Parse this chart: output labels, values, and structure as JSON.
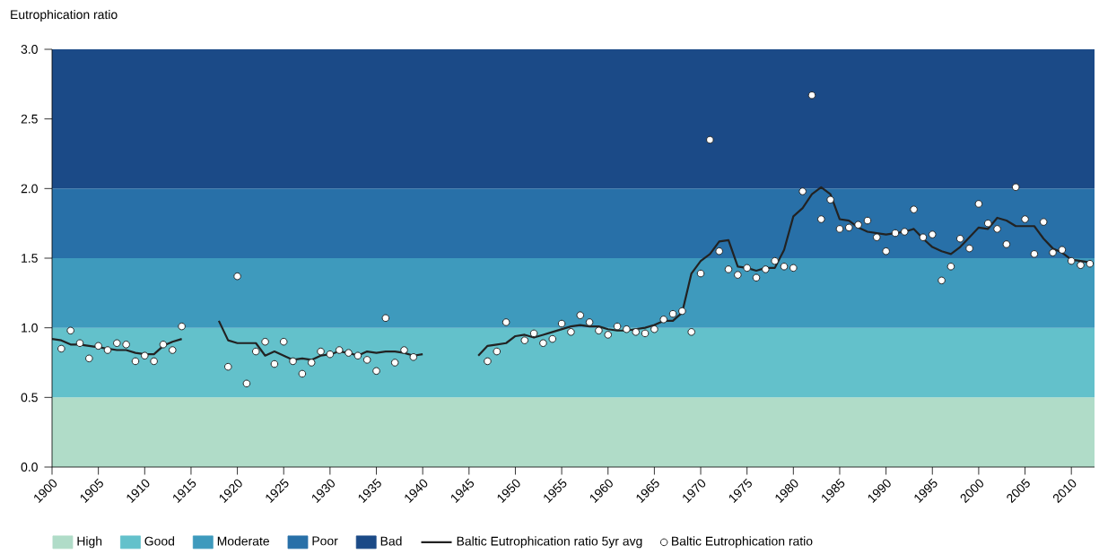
{
  "chart_data": {
    "type": "line",
    "ylabel": "Eutrophication ratio",
    "xlim": [
      1900,
      2012.5
    ],
    "ylim": [
      0,
      3
    ],
    "xticks": [
      1900,
      1905,
      1910,
      1915,
      1920,
      1925,
      1930,
      1935,
      1940,
      1945,
      1950,
      1955,
      1960,
      1965,
      1970,
      1975,
      1980,
      1985,
      1990,
      1995,
      2000,
      2005,
      2010
    ],
    "yticks": [
      {
        "value": 0,
        "label": "0.0"
      },
      {
        "value": 0.5,
        "label": "0.5"
      },
      {
        "value": 1,
        "label": "1.0"
      },
      {
        "value": 1.5,
        "label": "1.5"
      },
      {
        "value": 2,
        "label": "2.0"
      },
      {
        "value": 2.5,
        "label": "2.5"
      },
      {
        "value": 3,
        "label": "3.0"
      }
    ],
    "bands": [
      {
        "axis": "y",
        "from": 0,
        "to": 0.5,
        "label": "High",
        "color": "#b0dcc8"
      },
      {
        "axis": "y",
        "from": 0.5,
        "to": 1,
        "label": "Good",
        "color": "#63c1cb"
      },
      {
        "axis": "y",
        "from": 1,
        "to": 1.5,
        "label": "Moderate",
        "color": "#3e9abd"
      },
      {
        "axis": "y",
        "from": 1.5,
        "to": 2,
        "label": "Poor",
        "color": "#2870a8"
      },
      {
        "axis": "y",
        "from": 2,
        "to": 3,
        "label": "Bad",
        "color": "#1b4a87"
      }
    ],
    "legend": "bottom",
    "series": [
      {
        "name": "Baltic Eutrophication ratio 5yr avg",
        "color": "#222222",
        "marker": "none",
        "x": [
          1900,
          1901,
          1902,
          1903,
          1904,
          1905,
          1906,
          1907,
          1908,
          1909,
          1910,
          1911,
          1912,
          1913,
          1914,
          1915,
          1918,
          1919,
          1920,
          1921,
          1922,
          1923,
          1924,
          1925,
          1926,
          1927,
          1928,
          1929,
          1930,
          1931,
          1932,
          1933,
          1934,
          1935,
          1936,
          1937,
          1938,
          1939,
          1940,
          1941,
          1946,
          1947,
          1948,
          1949,
          1950,
          1951,
          1952,
          1953,
          1954,
          1955,
          1956,
          1957,
          1958,
          1959,
          1960,
          1961,
          1962,
          1963,
          1964,
          1965,
          1966,
          1967,
          1968,
          1969,
          1970,
          1971,
          1972,
          1973,
          1974,
          1975,
          1976,
          1977,
          1978,
          1979,
          1980,
          1981,
          1982,
          1983,
          1984,
          1985,
          1986,
          1987,
          1988,
          1989,
          1990,
          1991,
          1992,
          1993,
          1994,
          1995,
          1996,
          1997,
          1998,
          1999,
          2000,
          2001,
          2002,
          2003,
          2004,
          2005,
          2006,
          2007,
          2008,
          2009,
          2010,
          2011,
          2012
        ],
        "values": [
          0.92,
          0.91,
          0.88,
          0.88,
          0.87,
          0.86,
          0.85,
          0.84,
          0.84,
          0.82,
          0.81,
          0.81,
          0.87,
          0.9,
          0.92,
          null,
          1.05,
          0.91,
          0.89,
          0.89,
          0.89,
          0.8,
          0.83,
          0.8,
          0.77,
          0.78,
          0.77,
          0.8,
          0.81,
          0.83,
          0.82,
          0.8,
          0.83,
          0.82,
          0.83,
          0.83,
          0.82,
          0.8,
          0.81,
          null,
          0.8,
          0.87,
          0.88,
          0.89,
          0.94,
          0.95,
          0.93,
          0.95,
          0.97,
          0.99,
          1.01,
          1.02,
          1.01,
          1.01,
          0.99,
          0.98,
          0.98,
          0.99,
          1.0,
          1.02,
          1.05,
          1.05,
          1.11,
          1.39,
          1.48,
          1.53,
          1.62,
          1.63,
          1.44,
          1.43,
          1.41,
          1.43,
          1.43,
          1.56,
          1.8,
          1.86,
          1.96,
          2.01,
          1.96,
          1.78,
          1.77,
          1.72,
          1.69,
          1.68,
          1.67,
          1.68,
          1.69,
          1.71,
          1.64,
          1.58,
          1.55,
          1.53,
          1.58,
          1.65,
          1.72,
          1.71,
          1.79,
          1.77,
          1.73,
          1.73,
          1.73,
          1.64,
          1.57,
          1.54,
          1.49,
          1.48,
          1.47
        ]
      },
      {
        "name": "Baltic Eutrophication ratio",
        "type": "scatter",
        "color": "#ffffff",
        "marker": "circle",
        "x": [
          1901,
          1902,
          1903,
          1904,
          1905,
          1906,
          1907,
          1908,
          1909,
          1910,
          1911,
          1912,
          1913,
          1914,
          1919,
          1920,
          1921,
          1922,
          1923,
          1924,
          1925,
          1926,
          1927,
          1928,
          1929,
          1930,
          1931,
          1932,
          1933,
          1934,
          1935,
          1936,
          1937,
          1938,
          1939,
          1947,
          1948,
          1949,
          1951,
          1952,
          1953,
          1954,
          1955,
          1956,
          1957,
          1958,
          1959,
          1960,
          1961,
          1962,
          1963,
          1964,
          1965,
          1966,
          1967,
          1968,
          1969,
          1970,
          1971,
          1972,
          1973,
          1974,
          1975,
          1976,
          1977,
          1978,
          1979,
          1980,
          1981,
          1982,
          1983,
          1984,
          1985,
          1986,
          1987,
          1988,
          1989,
          1990,
          1991,
          1992,
          1993,
          1994,
          1995,
          1996,
          1997,
          1998,
          1999,
          2000,
          2001,
          2002,
          2003,
          2004,
          2005,
          2006,
          2007,
          2008,
          2009,
          2010,
          2011,
          2012
        ],
        "values": [
          0.85,
          0.98,
          0.89,
          0.78,
          0.87,
          0.84,
          0.89,
          0.88,
          0.76,
          0.8,
          0.76,
          0.88,
          0.84,
          1.01,
          0.72,
          1.37,
          0.6,
          0.83,
          0.9,
          0.74,
          0.9,
          0.76,
          0.67,
          0.75,
          0.83,
          0.81,
          0.84,
          0.82,
          0.8,
          0.77,
          0.69,
          1.07,
          0.75,
          0.84,
          0.79,
          0.76,
          0.83,
          1.04,
          0.91,
          0.96,
          0.89,
          0.92,
          1.03,
          0.97,
          1.09,
          1.04,
          0.98,
          0.95,
          1.01,
          0.99,
          0.97,
          0.96,
          0.99,
          1.06,
          1.1,
          1.12,
          0.97,
          1.39,
          2.35,
          1.55,
          1.42,
          1.38,
          1.43,
          1.36,
          1.42,
          1.48,
          1.44,
          1.43,
          1.98,
          2.67,
          1.78,
          1.92,
          1.71,
          1.72,
          1.74,
          1.77,
          1.65,
          1.55,
          1.68,
          1.69,
          1.85,
          1.65,
          1.67,
          1.34,
          1.44,
          1.64,
          1.57,
          1.89,
          1.75,
          1.71,
          1.6,
          2.01,
          1.78,
          1.53,
          1.76,
          1.54,
          1.56,
          1.48,
          1.45,
          1.46
        ]
      }
    ]
  }
}
